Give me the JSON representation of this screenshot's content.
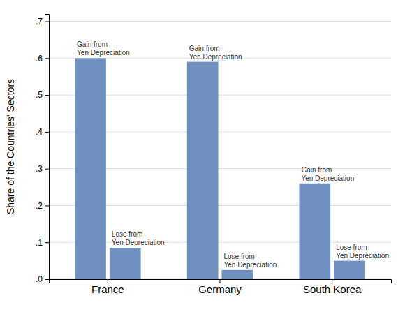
{
  "chart_data": {
    "type": "bar",
    "categories": [
      "France",
      "Germany",
      "South Korea"
    ],
    "series": [
      {
        "color": "#7090C0",
        "values": [
          0.6,
          0.59,
          0.26
        ],
        "label": "Gain from\nYen Depreciation"
      },
      {
        "color": "#7090C0",
        "values": [
          0.085,
          0.025,
          0.05
        ],
        "label": "Lose from\nYen Depreciation"
      }
    ],
    "ylabel": "Share of the Countries' Sectors",
    "ylim": [
      0,
      0.72
    ],
    "yticks": [
      {
        "value": 0.0,
        "label": ".0"
      },
      {
        "value": 0.1,
        "label": ".1"
      },
      {
        "value": 0.2,
        "label": ".2"
      },
      {
        "value": 0.3,
        "label": ".3"
      },
      {
        "value": 0.4,
        "label": ".4"
      },
      {
        "value": 0.5,
        "label": ".5"
      },
      {
        "value": 0.6,
        "label": ".6"
      },
      {
        "value": 0.7,
        "label": ".7"
      }
    ],
    "grid": true
  }
}
